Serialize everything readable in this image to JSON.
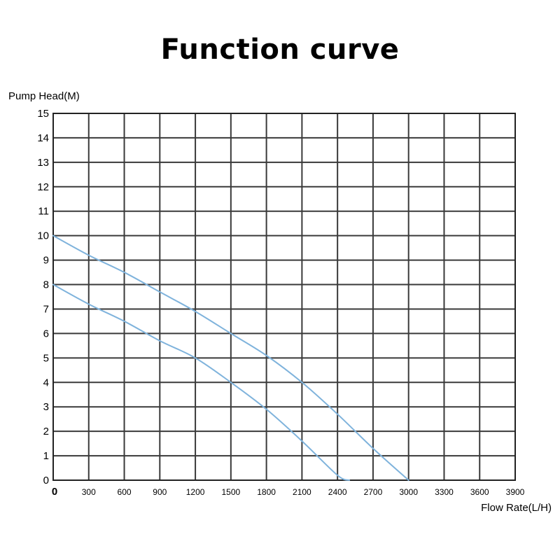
{
  "chart_data": {
    "type": "line",
    "title": "Function curve",
    "ylabel": "Pump Head(M)",
    "xlabel": "Flow Rate(L/H)",
    "xlim": [
      0,
      3900
    ],
    "ylim": [
      0,
      15
    ],
    "x_ticks": [
      "0",
      "300",
      "600",
      "900",
      "1200",
      "1500",
      "1800",
      "2100",
      "2400",
      "2700",
      "3000",
      "3300",
      "3600",
      "3900"
    ],
    "y_ticks": [
      "0",
      "1",
      "2",
      "3",
      "4",
      "5",
      "6",
      "7",
      "8",
      "9",
      "10",
      "11",
      "12",
      "13",
      "14",
      "15"
    ],
    "grid": true,
    "line_color": "#7fb3dc",
    "series": [
      {
        "points": [
          [
            0,
            10
          ],
          [
            300,
            9.2
          ],
          [
            600,
            8.5
          ],
          [
            900,
            7.7
          ],
          [
            1200,
            6.9
          ],
          [
            1500,
            6.0
          ],
          [
            1800,
            5.1
          ],
          [
            2100,
            4.0
          ],
          [
            2400,
            2.7
          ],
          [
            2700,
            1.3
          ],
          [
            3000,
            0
          ]
        ]
      },
      {
        "points": [
          [
            0,
            8
          ],
          [
            300,
            7.2
          ],
          [
            600,
            6.5
          ],
          [
            900,
            5.7
          ],
          [
            1200,
            5.0
          ],
          [
            1500,
            4.0
          ],
          [
            1800,
            2.9
          ],
          [
            2100,
            1.6
          ],
          [
            2400,
            0.2
          ],
          [
            2500,
            0
          ]
        ]
      }
    ]
  }
}
